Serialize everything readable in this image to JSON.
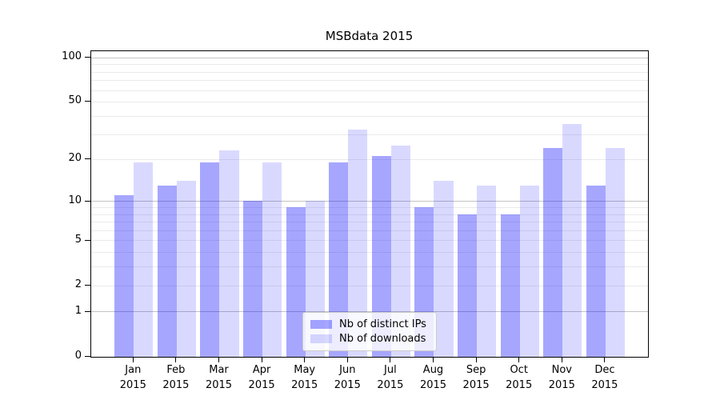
{
  "title": "MSBdata 2015",
  "chart_data": {
    "type": "bar",
    "title": "MSBdata 2015",
    "categories": [
      "Jan",
      "Feb",
      "Mar",
      "Apr",
      "May",
      "Jun",
      "Jul",
      "Aug",
      "Sep",
      "Oct",
      "Nov",
      "Dec"
    ],
    "category_year": "2015",
    "series": [
      {
        "name": "Nb of distinct IPs",
        "color": "rgba(0,0,255,0.35)",
        "values": [
          11,
          13,
          19,
          10,
          9,
          19,
          21,
          9,
          8,
          8,
          24,
          13
        ]
      },
      {
        "name": "Nb of downloads",
        "color": "rgba(0,0,255,0.15)",
        "values": [
          19,
          14,
          23,
          19,
          10,
          32,
          25,
          14,
          13,
          13,
          35,
          24
        ]
      }
    ],
    "xlabel": "",
    "ylabel": "",
    "y_axis": {
      "scale": "log1p",
      "tick_labels": [
        100,
        50,
        20,
        10,
        5,
        2,
        1,
        0
      ],
      "ylim": [
        0,
        110
      ],
      "major_gridlines": [
        1,
        10,
        100
      ],
      "minor_gridlines": [
        2,
        3,
        4,
        5,
        6,
        7,
        8,
        9,
        20,
        30,
        40,
        50,
        60,
        70,
        80,
        90
      ]
    },
    "grid": true,
    "legend": {
      "position": "lower-center",
      "entries": [
        "Nb of distinct IPs",
        "Nb of downloads"
      ]
    },
    "colors": {
      "major_grid": "#c3c3c3",
      "minor_grid": "#ebebeb",
      "spine": "#000000",
      "background": "#ffffff"
    }
  }
}
